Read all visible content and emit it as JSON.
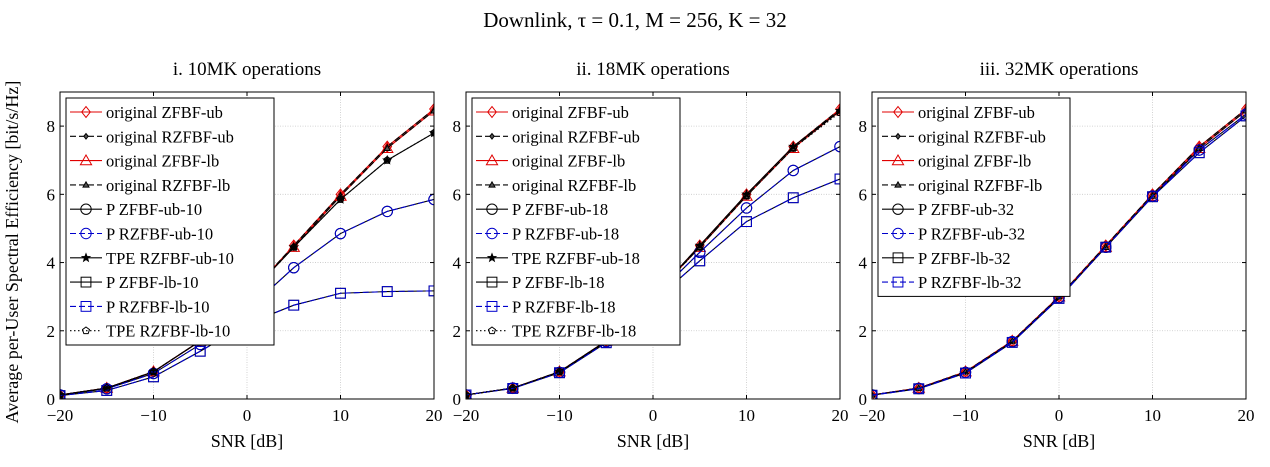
{
  "figure": {
    "title": "Downlink, τ = 0.1, M = 256, K = 32",
    "ylabel": "Average per-User Spectral Efficiency [bit/s/Hz]"
  },
  "chart_data": [
    {
      "type": "line",
      "title": "i. 10MK operations",
      "xlabel": "SNR [dB]",
      "ylabel": "Average per-User Spectral Efficiency [bit/s/Hz]",
      "xlim": [
        -20,
        20
      ],
      "ylim": [
        0,
        9
      ],
      "xticks": [
        -20,
        -10,
        0,
        10,
        20
      ],
      "yticks": [
        0,
        2,
        4,
        6,
        8
      ],
      "grid": true,
      "legend": "top-left",
      "x": [
        -20,
        -15,
        -10,
        -5,
        0,
        5,
        10,
        15,
        20
      ],
      "series": [
        {
          "name": "original ZFBF-ub",
          "color": "#e00000",
          "dash": "solid",
          "marker": "diamond",
          "values": [
            0.12,
            0.32,
            0.8,
            1.7,
            3.0,
            4.5,
            6.0,
            7.4,
            8.5
          ]
        },
        {
          "name": "original RZFBF-ub",
          "color": "#000000",
          "dash": "dashed",
          "marker": "diamond-small",
          "values": [
            0.12,
            0.32,
            0.8,
            1.7,
            3.0,
            4.5,
            6.0,
            7.4,
            8.5
          ]
        },
        {
          "name": "original ZFBF-lb",
          "color": "#e00000",
          "dash": "solid",
          "marker": "triangle",
          "values": [
            0.12,
            0.32,
            0.8,
            1.7,
            3.0,
            4.45,
            5.95,
            7.35,
            8.45
          ]
        },
        {
          "name": "original RZFBF-lb",
          "color": "#000000",
          "dash": "dashed",
          "marker": "triangle-small",
          "values": [
            0.12,
            0.32,
            0.8,
            1.7,
            3.0,
            4.45,
            5.95,
            7.35,
            8.45
          ]
        },
        {
          "name": "P ZFBF-ub-10",
          "color": "#000000",
          "dash": "solid",
          "marker": "circle",
          "values": [
            0.12,
            0.3,
            0.75,
            1.6,
            2.6,
            3.85,
            4.85,
            5.5,
            5.85
          ]
        },
        {
          "name": "P RZFBF-ub-10",
          "color": "#0000cc",
          "dash": "dashed",
          "marker": "circle",
          "values": [
            0.12,
            0.3,
            0.75,
            1.6,
            2.6,
            3.85,
            4.85,
            5.5,
            5.85
          ]
        },
        {
          "name": "TPE RZFBF-ub-10",
          "color": "#000000",
          "dash": "solid",
          "marker": "star",
          "values": [
            0.12,
            0.32,
            0.8,
            1.7,
            3.0,
            4.45,
            5.85,
            7.0,
            7.8
          ]
        },
        {
          "name": "P ZFBF-lb-10",
          "color": "#000000",
          "dash": "solid",
          "marker": "square",
          "values": [
            0.1,
            0.25,
            0.65,
            1.4,
            2.2,
            2.75,
            3.1,
            3.15,
            3.17
          ]
        },
        {
          "name": "P RZFBF-lb-10",
          "color": "#0000cc",
          "dash": "dashed",
          "marker": "square",
          "values": [
            0.1,
            0.25,
            0.65,
            1.4,
            2.2,
            2.75,
            3.1,
            3.15,
            3.17
          ]
        },
        {
          "name": "TPE RZFBF-lb-10",
          "color": "#000000",
          "dash": "dotted",
          "marker": "pentagon",
          "values": [
            0.12,
            0.32,
            0.8,
            1.7,
            3.0,
            4.45,
            5.85,
            7.0,
            7.8
          ]
        }
      ]
    },
    {
      "type": "line",
      "title": "ii. 18MK operations",
      "xlabel": "SNR [dB]",
      "xlim": [
        -20,
        20
      ],
      "ylim": [
        0,
        9
      ],
      "xticks": [
        -20,
        -10,
        0,
        10,
        20
      ],
      "yticks": [
        0,
        2,
        4,
        6,
        8
      ],
      "grid": true,
      "legend": "top-left",
      "x": [
        -20,
        -15,
        -10,
        -5,
        0,
        5,
        10,
        15,
        20
      ],
      "series": [
        {
          "name": "original ZFBF-ub",
          "color": "#e00000",
          "dash": "solid",
          "marker": "diamond",
          "values": [
            0.12,
            0.32,
            0.8,
            1.7,
            3.0,
            4.5,
            6.0,
            7.4,
            8.5
          ]
        },
        {
          "name": "original RZFBF-ub",
          "color": "#000000",
          "dash": "dashed",
          "marker": "diamond-small",
          "values": [
            0.12,
            0.32,
            0.8,
            1.7,
            3.0,
            4.5,
            6.0,
            7.4,
            8.5
          ]
        },
        {
          "name": "original ZFBF-lb",
          "color": "#e00000",
          "dash": "solid",
          "marker": "triangle",
          "values": [
            0.12,
            0.32,
            0.8,
            1.7,
            3.0,
            4.45,
            5.95,
            7.35,
            8.45
          ]
        },
        {
          "name": "original RZFBF-lb",
          "color": "#000000",
          "dash": "dashed",
          "marker": "triangle-small",
          "values": [
            0.12,
            0.32,
            0.8,
            1.7,
            3.0,
            4.45,
            5.95,
            7.35,
            8.45
          ]
        },
        {
          "name": "P ZFBF-ub-18",
          "color": "#000000",
          "dash": "solid",
          "marker": "circle",
          "values": [
            0.12,
            0.32,
            0.78,
            1.68,
            2.95,
            4.3,
            5.6,
            6.7,
            7.4
          ]
        },
        {
          "name": "P RZFBF-ub-18",
          "color": "#0000cc",
          "dash": "dashed",
          "marker": "circle",
          "values": [
            0.12,
            0.32,
            0.78,
            1.68,
            2.95,
            4.3,
            5.6,
            6.7,
            7.4
          ]
        },
        {
          "name": "TPE RZFBF-ub-18",
          "color": "#000000",
          "dash": "solid",
          "marker": "star",
          "values": [
            0.12,
            0.32,
            0.8,
            1.7,
            3.0,
            4.5,
            6.0,
            7.4,
            8.45
          ]
        },
        {
          "name": "P ZFBF-lb-18",
          "color": "#000000",
          "dash": "solid",
          "marker": "square",
          "values": [
            0.12,
            0.31,
            0.77,
            1.65,
            2.85,
            4.05,
            5.2,
            5.9,
            6.45
          ]
        },
        {
          "name": "P RZFBF-lb-18",
          "color": "#0000cc",
          "dash": "dashed",
          "marker": "square",
          "values": [
            0.12,
            0.31,
            0.77,
            1.65,
            2.85,
            4.05,
            5.2,
            5.9,
            6.45
          ]
        },
        {
          "name": "TPE RZFBF-lb-18",
          "color": "#000000",
          "dash": "dotted",
          "marker": "pentagon",
          "values": [
            0.12,
            0.32,
            0.8,
            1.7,
            3.0,
            4.45,
            5.95,
            7.35,
            8.4
          ]
        }
      ]
    },
    {
      "type": "line",
      "title": "iii. 32MK operations",
      "xlabel": "SNR [dB]",
      "xlim": [
        -20,
        20
      ],
      "ylim": [
        0,
        9
      ],
      "xticks": [
        -20,
        -10,
        0,
        10,
        20
      ],
      "yticks": [
        0,
        2,
        4,
        6,
        8
      ],
      "grid": true,
      "legend": "top-left",
      "x": [
        -20,
        -15,
        -10,
        -5,
        0,
        5,
        10,
        15,
        20
      ],
      "series": [
        {
          "name": "original ZFBF-ub",
          "color": "#e00000",
          "dash": "solid",
          "marker": "diamond",
          "values": [
            0.12,
            0.32,
            0.8,
            1.7,
            3.0,
            4.5,
            6.0,
            7.4,
            8.5
          ]
        },
        {
          "name": "original RZFBF-ub",
          "color": "#000000",
          "dash": "dashed",
          "marker": "diamond-small",
          "values": [
            0.12,
            0.32,
            0.8,
            1.7,
            3.0,
            4.5,
            6.0,
            7.4,
            8.5
          ]
        },
        {
          "name": "original ZFBF-lb",
          "color": "#e00000",
          "dash": "solid",
          "marker": "triangle",
          "values": [
            0.12,
            0.32,
            0.8,
            1.7,
            3.0,
            4.45,
            5.95,
            7.35,
            8.45
          ]
        },
        {
          "name": "original RZFBF-lb",
          "color": "#000000",
          "dash": "dashed",
          "marker": "triangle-small",
          "values": [
            0.12,
            0.32,
            0.8,
            1.7,
            3.0,
            4.45,
            5.95,
            7.35,
            8.45
          ]
        },
        {
          "name": "P ZFBF-ub-32",
          "color": "#000000",
          "dash": "solid",
          "marker": "circle",
          "values": [
            0.12,
            0.31,
            0.78,
            1.68,
            2.97,
            4.45,
            5.95,
            7.3,
            8.35
          ]
        },
        {
          "name": "P RZFBF-ub-32",
          "color": "#0000cc",
          "dash": "dashed",
          "marker": "circle",
          "values": [
            0.12,
            0.31,
            0.78,
            1.68,
            2.97,
            4.45,
            5.95,
            7.3,
            8.35
          ]
        },
        {
          "name": "P ZFBF-lb-32",
          "color": "#000000",
          "dash": "solid",
          "marker": "square",
          "values": [
            0.11,
            0.3,
            0.76,
            1.66,
            2.95,
            4.45,
            5.93,
            7.22,
            8.3
          ]
        },
        {
          "name": "P RZFBF-lb-32",
          "color": "#0000cc",
          "dash": "dashed",
          "marker": "square",
          "values": [
            0.11,
            0.3,
            0.76,
            1.66,
            2.95,
            4.45,
            5.93,
            7.22,
            8.3
          ]
        }
      ]
    }
  ]
}
